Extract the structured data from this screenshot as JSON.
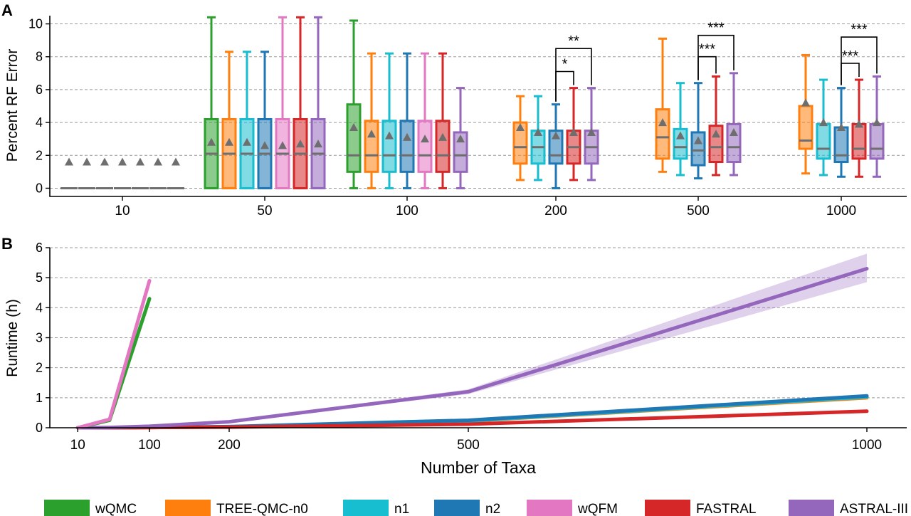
{
  "colors": {
    "wQMC": "#2ca02c",
    "TREE-QMC-n0": "#ff7f0e",
    "n1": "#17becf",
    "n2": "#1f77b4",
    "wQFM": "#e377c2",
    "FASTRAL": "#d62728",
    "ASTRAL-III": "#9467bd",
    "median": "#6e6e6e",
    "mean_marker": "#6e6e6e"
  },
  "chart_data": [
    {
      "panel_label": "A",
      "type": "box",
      "ylabel": "Percent RF Error",
      "ylim": [
        -0.5,
        10.5
      ],
      "yticks": [
        0,
        2,
        4,
        6,
        8,
        10
      ],
      "grid": true,
      "groups": [
        "10",
        "50",
        "100",
        "200",
        "500",
        "1000"
      ],
      "methods_per_group": [
        [
          "wQMC",
          "TREE-QMC-n0",
          "n1",
          "n2",
          "wQFM",
          "FASTRAL",
          "ASTRAL-III"
        ],
        [
          "wQMC",
          "TREE-QMC-n0",
          "n1",
          "n2",
          "wQFM",
          "FASTRAL",
          "ASTRAL-III"
        ],
        [
          "wQMC",
          "TREE-QMC-n0",
          "n1",
          "n2",
          "wQFM",
          "FASTRAL",
          "ASTRAL-III"
        ],
        [
          "TREE-QMC-n0",
          "n1",
          "n2",
          "FASTRAL",
          "ASTRAL-III"
        ],
        [
          "TREE-QMC-n0",
          "n1",
          "n2",
          "FASTRAL",
          "ASTRAL-III"
        ],
        [
          "TREE-QMC-n0",
          "n1",
          "n2",
          "FASTRAL",
          "ASTRAL-III"
        ]
      ],
      "boxes": [
        [
          {
            "min": 0,
            "q1": 0,
            "median": 0,
            "q3": 0,
            "max": 0,
            "mean": 1.6
          },
          {
            "min": 0,
            "q1": 0,
            "median": 0,
            "q3": 0,
            "max": 0,
            "mean": 1.6
          },
          {
            "min": 0,
            "q1": 0,
            "median": 0,
            "q3": 0,
            "max": 0,
            "mean": 1.6
          },
          {
            "min": 0,
            "q1": 0,
            "median": 0,
            "q3": 0,
            "max": 0,
            "mean": 1.6
          },
          {
            "min": 0,
            "q1": 0,
            "median": 0,
            "q3": 0,
            "max": 0,
            "mean": 1.6
          },
          {
            "min": 0,
            "q1": 0,
            "median": 0,
            "q3": 0,
            "max": 0,
            "mean": 1.6
          },
          {
            "min": 0,
            "q1": 0,
            "median": 0,
            "q3": 0,
            "max": 0,
            "mean": 1.6
          }
        ],
        [
          {
            "min": 0,
            "q1": 0,
            "median": 2.1,
            "q3": 4.2,
            "max": 10.4,
            "mean": 2.8
          },
          {
            "min": 0,
            "q1": 0,
            "median": 2.1,
            "q3": 4.2,
            "max": 8.3,
            "mean": 2.8
          },
          {
            "min": 0,
            "q1": 0,
            "median": 2.1,
            "q3": 4.2,
            "max": 8.3,
            "mean": 2.8
          },
          {
            "min": 0,
            "q1": 0,
            "median": 2.1,
            "q3": 4.2,
            "max": 8.3,
            "mean": 2.6
          },
          {
            "min": 0,
            "q1": 0,
            "median": 2.1,
            "q3": 4.2,
            "max": 10.4,
            "mean": 2.6
          },
          {
            "min": 0,
            "q1": 0,
            "median": 2.1,
            "q3": 4.2,
            "max": 10.4,
            "mean": 2.7
          },
          {
            "min": 0,
            "q1": 0,
            "median": 2.1,
            "q3": 4.2,
            "max": 10.4,
            "mean": 2.7
          }
        ],
        [
          {
            "min": 0,
            "q1": 1.0,
            "median": 2.0,
            "q3": 5.1,
            "max": 10.2,
            "mean": 3.7
          },
          {
            "min": 0,
            "q1": 1.0,
            "median": 2.0,
            "q3": 4.1,
            "max": 8.2,
            "mean": 3.3
          },
          {
            "min": 0,
            "q1": 1.0,
            "median": 2.0,
            "q3": 4.1,
            "max": 8.2,
            "mean": 3.2
          },
          {
            "min": 0,
            "q1": 1.0,
            "median": 2.0,
            "q3": 4.1,
            "max": 8.2,
            "mean": 3.1
          },
          {
            "min": 0,
            "q1": 1.0,
            "median": 2.0,
            "q3": 4.1,
            "max": 8.2,
            "mean": 3.0
          },
          {
            "min": 0,
            "q1": 1.0,
            "median": 2.0,
            "q3": 4.1,
            "max": 8.2,
            "mean": 3.1
          },
          {
            "min": 0,
            "q1": 1.0,
            "median": 2.0,
            "q3": 3.4,
            "max": 6.1,
            "mean": 3.0
          }
        ],
        [
          {
            "min": 0.5,
            "q1": 1.5,
            "median": 2.5,
            "q3": 4.0,
            "max": 5.6,
            "mean": 3.7
          },
          {
            "min": 0.5,
            "q1": 1.5,
            "median": 2.5,
            "q3": 3.5,
            "max": 5.6,
            "mean": 3.4
          },
          {
            "min": 0,
            "q1": 1.5,
            "median": 2.0,
            "q3": 3.5,
            "max": 5.1,
            "mean": 3.2
          },
          {
            "min": 0.5,
            "q1": 1.5,
            "median": 2.5,
            "q3": 3.5,
            "max": 6.1,
            "mean": 3.4
          },
          {
            "min": 0.5,
            "q1": 1.5,
            "median": 2.5,
            "q3": 3.5,
            "max": 6.1,
            "mean": 3.4
          }
        ],
        [
          {
            "min": 1.0,
            "q1": 1.8,
            "median": 3.1,
            "q3": 4.8,
            "max": 9.1,
            "mean": 4.0
          },
          {
            "min": 0.8,
            "q1": 1.8,
            "median": 2.5,
            "q3": 3.6,
            "max": 6.4,
            "mean": 3.2
          },
          {
            "min": 0.6,
            "q1": 1.4,
            "median": 2.3,
            "q3": 3.4,
            "max": 6.4,
            "mean": 2.9
          },
          {
            "min": 0.8,
            "q1": 1.6,
            "median": 2.5,
            "q3": 3.8,
            "max": 6.8,
            "mean": 3.3
          },
          {
            "min": 0.8,
            "q1": 1.6,
            "median": 2.5,
            "q3": 3.9,
            "max": 7.0,
            "mean": 3.4
          }
        ],
        [
          {
            "min": 0.9,
            "q1": 2.4,
            "median": 2.9,
            "q3": 5.0,
            "max": 8.1,
            "mean": 5.2
          },
          {
            "min": 0.8,
            "q1": 1.8,
            "median": 2.4,
            "q3": 3.9,
            "max": 6.6,
            "mean": 4.0
          },
          {
            "min": 0.7,
            "q1": 1.6,
            "median": 2.0,
            "q3": 3.7,
            "max": 6.1,
            "mean": 3.7
          },
          {
            "min": 0.7,
            "q1": 1.8,
            "median": 2.4,
            "q3": 3.9,
            "max": 6.6,
            "mean": 3.9
          },
          {
            "min": 0.7,
            "q1": 1.8,
            "median": 2.4,
            "q3": 3.9,
            "max": 6.8,
            "mean": 4.0
          }
        ]
      ],
      "significance": [
        {
          "group": "200",
          "from": "n2",
          "to": "ASTRAL-III",
          "label": "**",
          "y": 8.5
        },
        {
          "group": "200",
          "from": "n2",
          "to": "FASTRAL",
          "label": "*",
          "y": 7.1
        },
        {
          "group": "500",
          "from": "n2",
          "to": "ASTRAL-III",
          "label": "***",
          "y": 9.3
        },
        {
          "group": "500",
          "from": "n2",
          "to": "FASTRAL",
          "label": "***",
          "y": 8.0
        },
        {
          "group": "1000",
          "from": "n2",
          "to": "ASTRAL-III",
          "label": "***",
          "y": 9.2
        },
        {
          "group": "1000",
          "from": "n2",
          "to": "FASTRAL",
          "label": "***",
          "y": 7.6
        }
      ]
    },
    {
      "panel_label": "B",
      "type": "line",
      "xlabel": "Number of Taxa",
      "ylabel": "Runtime (h)",
      "xticks": [
        10,
        100,
        200,
        500,
        1000
      ],
      "xlim": [
        -25,
        1050
      ],
      "ylim": [
        0,
        6
      ],
      "yticks": [
        0,
        1,
        2,
        3,
        4,
        5,
        6
      ],
      "grid": true,
      "series": [
        {
          "name": "wQMC",
          "x": [
            10,
            50,
            100
          ],
          "y": [
            0.0,
            0.25,
            4.3
          ]
        },
        {
          "name": "wQFM",
          "x": [
            10,
            50,
            100
          ],
          "y": [
            0.0,
            0.28,
            4.9
          ]
        },
        {
          "name": "TREE-QMC-n0",
          "x": [
            10,
            50,
            100,
            200,
            500,
            1000
          ],
          "y": [
            0.0,
            0.0,
            0.01,
            0.03,
            0.22,
            1.0
          ]
        },
        {
          "name": "n1",
          "x": [
            10,
            50,
            100,
            200,
            500,
            1000
          ],
          "y": [
            0.0,
            0.0,
            0.01,
            0.03,
            0.23,
            1.03
          ]
        },
        {
          "name": "n2",
          "x": [
            10,
            50,
            100,
            200,
            500,
            1000
          ],
          "y": [
            0.0,
            0.0,
            0.01,
            0.04,
            0.25,
            1.06
          ]
        },
        {
          "name": "FASTRAL",
          "x": [
            10,
            50,
            100,
            200,
            500,
            1000
          ],
          "y": [
            0.0,
            0.0,
            0.01,
            0.02,
            0.12,
            0.55
          ]
        },
        {
          "name": "ASTRAL-III",
          "x": [
            10,
            50,
            100,
            200,
            500,
            1000
          ],
          "y": [
            0.0,
            0.01,
            0.05,
            0.2,
            1.2,
            5.3
          ],
          "band_low": [
            0.0,
            0.01,
            0.04,
            0.17,
            1.12,
            4.85
          ],
          "band_high": [
            0.0,
            0.02,
            0.06,
            0.23,
            1.28,
            5.8
          ]
        }
      ]
    }
  ],
  "legend": [
    "wQMC",
    "TREE-QMC-n0",
    "n1",
    "n2",
    "wQFM",
    "FASTRAL",
    "ASTRAL-III"
  ]
}
